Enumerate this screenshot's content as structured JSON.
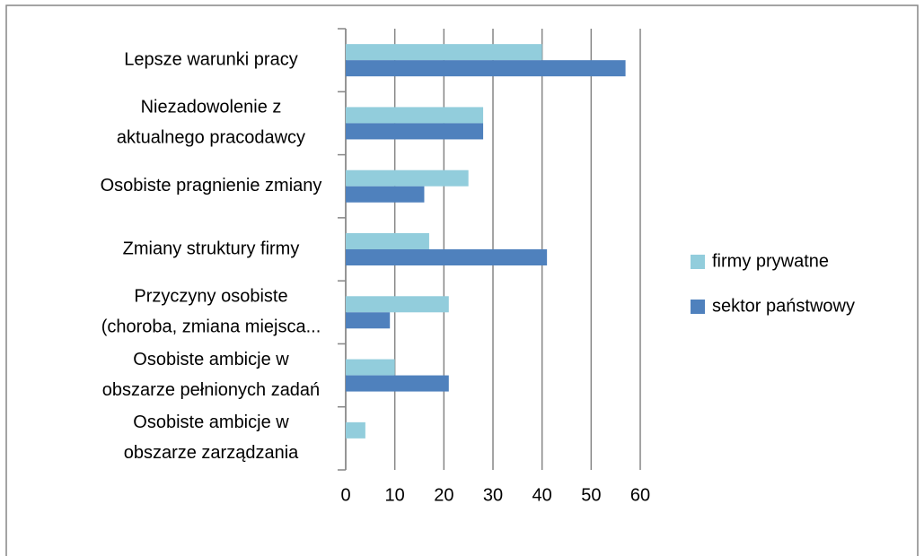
{
  "chart_data": {
    "type": "hbar",
    "categories": [
      [
        "Lepsze warunki pracy"
      ],
      [
        "Niezadowolenie z",
        "aktualnego pracodawcy"
      ],
      [
        "Osobiste pragnienie zmiany"
      ],
      [
        "Zmiany struktury firmy"
      ],
      [
        "Przyczyny osobiste",
        "(choroba, zmiana  miejsca..."
      ],
      [
        "Osobiste ambicje  w",
        "obszarze pełnionych zadań"
      ],
      [
        "Osobiste ambicje  w",
        "obszarze zarządzania"
      ]
    ],
    "series": [
      {
        "name": "firmy prywatne",
        "color": "#92cddc",
        "values": [
          40,
          28,
          25,
          17,
          21,
          10,
          4
        ]
      },
      {
        "name": "sektor państwowy",
        "color": "#4f81bd",
        "values": [
          57,
          28,
          16,
          41,
          9,
          21,
          0
        ]
      }
    ],
    "xlim": [
      0,
      60
    ],
    "xticks": [
      0,
      10,
      20,
      30,
      40,
      50,
      60
    ],
    "grid": true,
    "legend": "right"
  }
}
